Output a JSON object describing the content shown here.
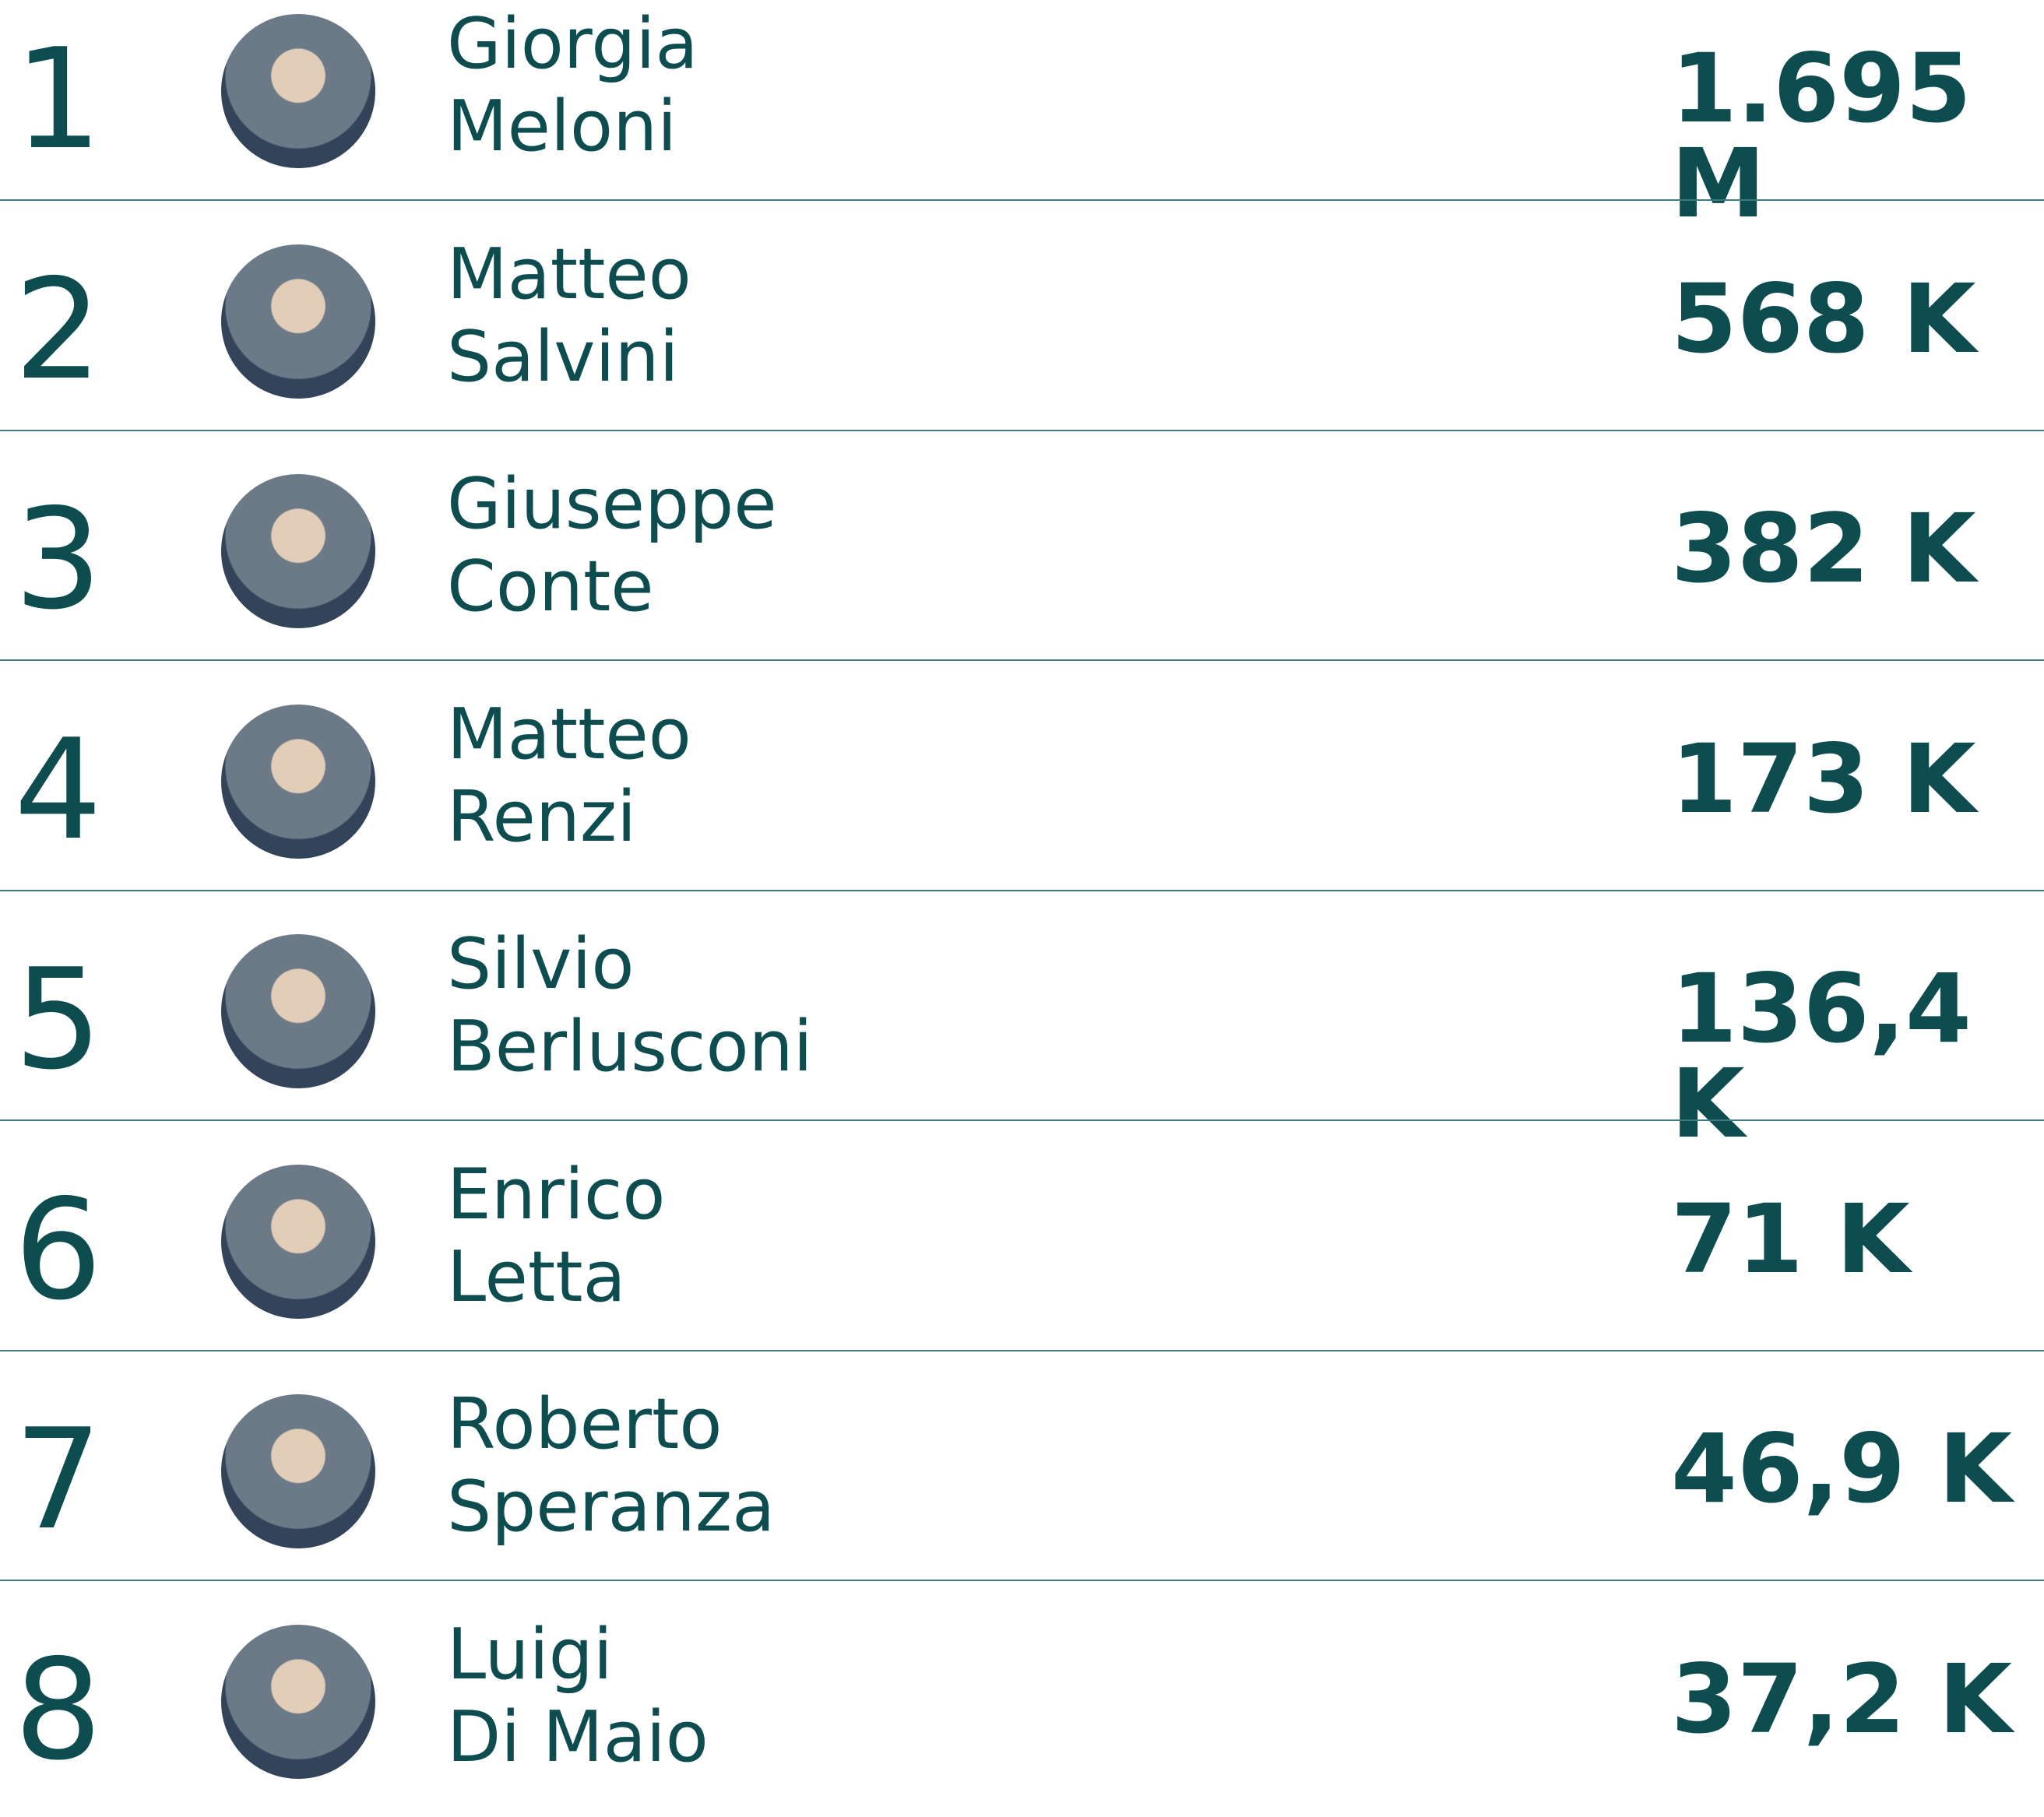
{
  "list": {
    "rows": [
      {
        "rank": "1",
        "first_name": "Giorgia",
        "last_name": "Meloni",
        "value": "1.695 M"
      },
      {
        "rank": "2",
        "first_name": "Matteo",
        "last_name": "Salvini",
        "value": "568 K"
      },
      {
        "rank": "3",
        "first_name": "Giuseppe",
        "last_name": "Conte",
        "value": "382 K"
      },
      {
        "rank": "4",
        "first_name": "Matteo",
        "last_name": "Renzi",
        "value": "173 K"
      },
      {
        "rank": "5",
        "first_name": "Silvio",
        "last_name": "Berlusconi",
        "value": "136,4 K"
      },
      {
        "rank": "6",
        "first_name": "Enrico",
        "last_name": "Letta",
        "value": "71 K"
      },
      {
        "rank": "7",
        "first_name": "Roberto",
        "last_name": "Speranza",
        "value": "46,9 K"
      },
      {
        "rank": "8",
        "first_name": "Luigi",
        "last_name": "Di Maio",
        "value": "37,2 K"
      }
    ]
  }
}
